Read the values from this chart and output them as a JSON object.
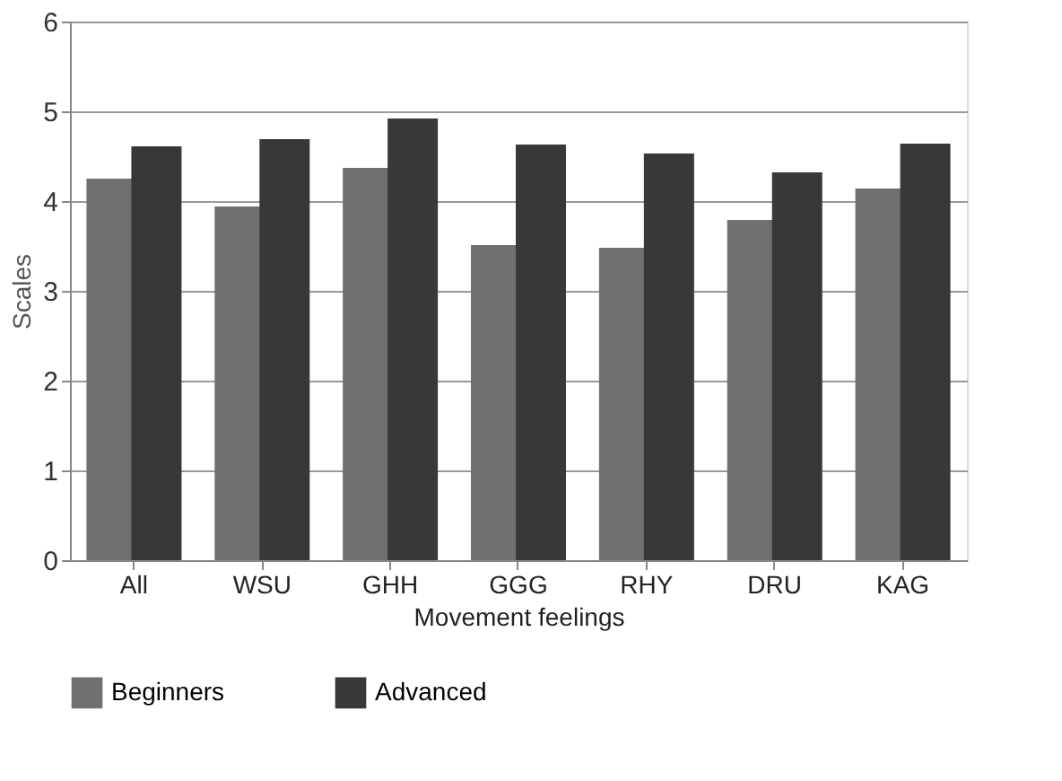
{
  "chart_data": {
    "type": "bar",
    "xlabel": "Movement feelings",
    "ylabel": "Scales",
    "categories": [
      "All",
      "WSU",
      "GHH",
      "GGG",
      "RHY",
      "DRU",
      "KAG"
    ],
    "series": [
      {
        "name": "Beginners",
        "color": "#707070",
        "values": [
          4.25,
          3.94,
          4.37,
          3.51,
          3.48,
          3.79,
          4.14
        ]
      },
      {
        "name": "Advanced",
        "color": "#383838",
        "values": [
          4.61,
          4.69,
          4.92,
          4.63,
          4.53,
          4.32,
          4.64
        ]
      }
    ],
    "ylim": [
      0,
      6
    ],
    "yticks": [
      0,
      1,
      2,
      3,
      4,
      5,
      6
    ],
    "grid": "y",
    "legend": "bottom"
  }
}
